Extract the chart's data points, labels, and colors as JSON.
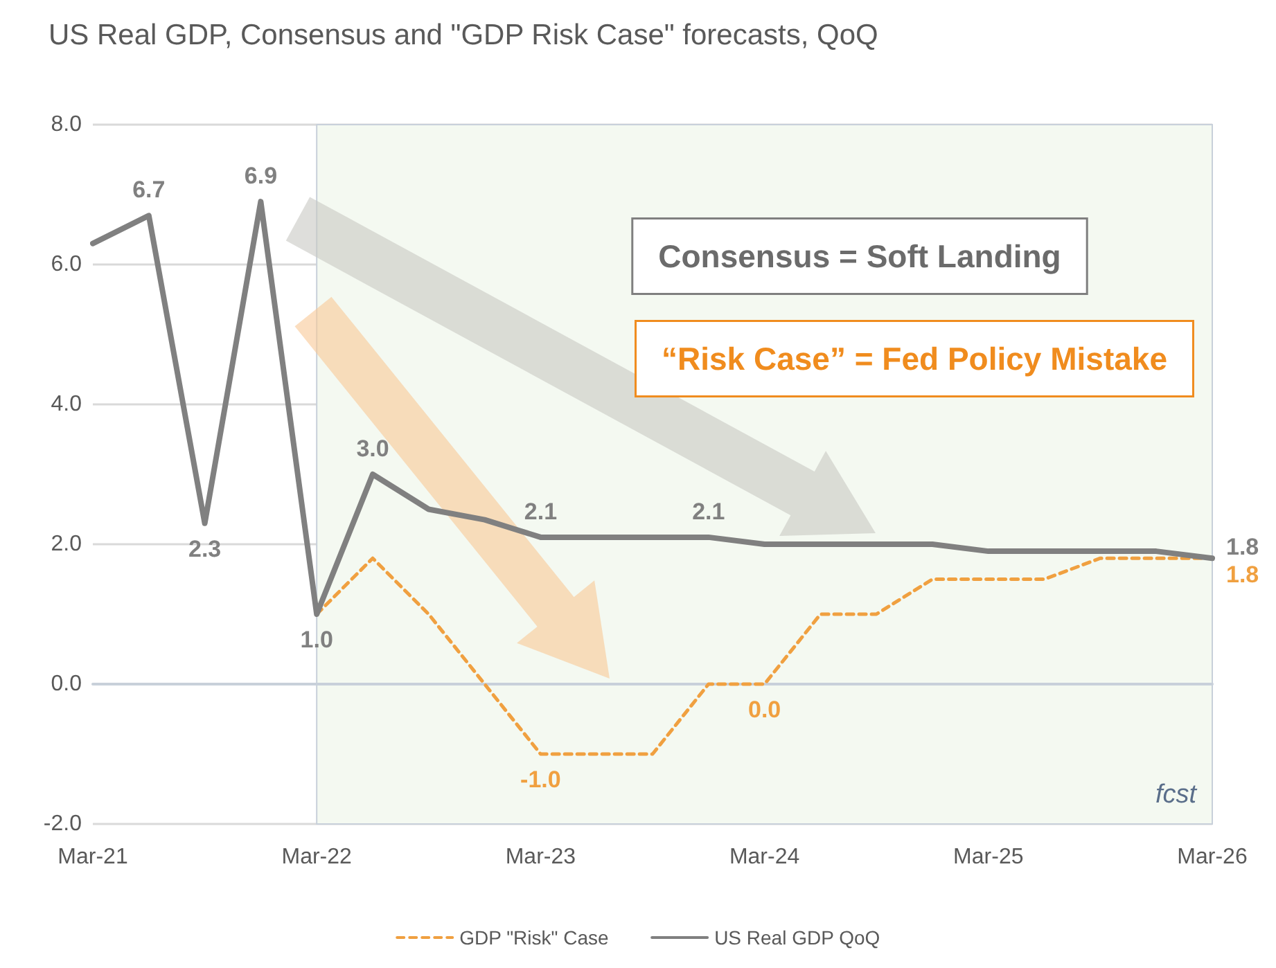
{
  "chart_data": {
    "type": "line",
    "title": "US Real GDP, Consensus and \"GDP Risk Case\" forecasts, QoQ",
    "categories": [
      "Mar-21",
      null,
      null,
      null,
      "Mar-22",
      null,
      null,
      null,
      "Mar-23",
      null,
      null,
      null,
      "Mar-24",
      null,
      null,
      null,
      "Mar-25",
      null,
      null,
      null,
      "Mar-26"
    ],
    "series": [
      {
        "name": "GDP \"Risk\" Case",
        "color": "#f0a040",
        "line_style": "dashed",
        "values": [
          null,
          null,
          null,
          null,
          1.0,
          1.8,
          1.0,
          0.0,
          -1.0,
          -1.0,
          -1.0,
          0.0,
          0.0,
          1.0,
          1.0,
          1.5,
          1.5,
          1.5,
          1.8,
          1.8,
          1.8
        ],
        "value_labels": [
          null,
          null,
          null,
          null,
          null,
          null,
          null,
          null,
          "-1.0",
          null,
          null,
          null,
          "0.0",
          null,
          null,
          null,
          null,
          null,
          null,
          null,
          "1.8"
        ]
      },
      {
        "name": "US Real GDP QoQ",
        "color": "#808080",
        "line_style": "solid",
        "values": [
          6.3,
          6.7,
          2.3,
          6.9,
          1.0,
          3.0,
          2.5,
          2.35,
          2.1,
          2.1,
          2.1,
          2.1,
          2.0,
          2.0,
          2.0,
          2.0,
          1.9,
          1.9,
          1.9,
          1.9,
          1.8
        ],
        "value_labels": [
          null,
          "6.7",
          "2.3",
          "6.9",
          "1.0",
          "3.0",
          null,
          null,
          "2.1",
          null,
          null,
          "2.1",
          null,
          null,
          null,
          null,
          null,
          null,
          null,
          null,
          "1.8"
        ]
      }
    ],
    "ylim": [
      -2,
      8
    ],
    "yticks": [
      {
        "value": -2,
        "label": "-2.0"
      },
      {
        "value": 0,
        "label": "0.0"
      },
      {
        "value": 2,
        "label": "2.0"
      },
      {
        "value": 4,
        "label": "4.0"
      },
      {
        "value": 6,
        "label": "6.0"
      },
      {
        "value": 8,
        "label": "8.0"
      }
    ],
    "grid": "y",
    "legend": "bottom",
    "marker": "none",
    "bands": [
      {
        "axis": "x",
        "from": "Mar-22",
        "to": "Mar-26",
        "label": "fcst",
        "color": "#f4f9f1"
      }
    ],
    "annotations": [
      "Consensus = Soft Landing",
      "“Risk Case” = Fed Policy Mistake"
    ]
  }
}
